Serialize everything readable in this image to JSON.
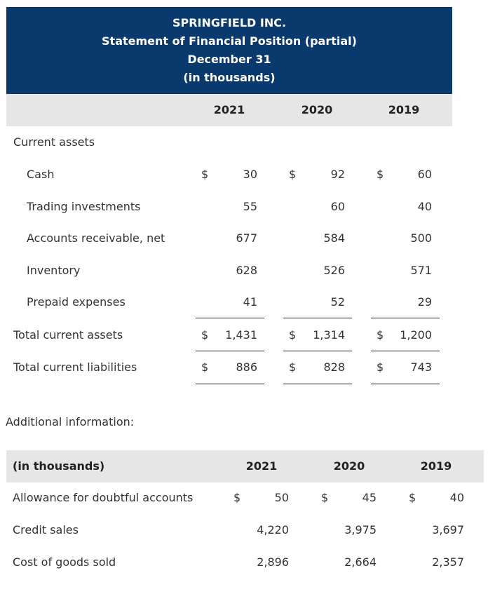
{
  "header": {
    "lines": [
      "SPRINGFIELD INC.",
      "Statement of Financial Position (partial)",
      "December 31",
      "(in thousands)"
    ]
  },
  "statement": {
    "columns": [
      "2021",
      "2020",
      "2019"
    ],
    "section": "Current assets",
    "current_assets": [
      {
        "label": "Cash",
        "cells": [
          {
            "currency": "$",
            "amount": "30"
          },
          {
            "currency": "$",
            "amount": "92"
          },
          {
            "currency": "$",
            "amount": "60"
          }
        ]
      },
      {
        "label": "Trading investments",
        "cells": [
          {
            "amount": "55"
          },
          {
            "amount": "60"
          },
          {
            "amount": "40"
          }
        ]
      },
      {
        "label": "Accounts receivable, net",
        "cells": [
          {
            "amount": "677"
          },
          {
            "amount": "584"
          },
          {
            "amount": "500"
          }
        ]
      },
      {
        "label": "Inventory",
        "cells": [
          {
            "amount": "628"
          },
          {
            "amount": "526"
          },
          {
            "amount": "571"
          }
        ]
      },
      {
        "label": "Prepaid expenses",
        "cells": [
          {
            "amount": "41"
          },
          {
            "amount": "52"
          },
          {
            "amount": "29"
          }
        ]
      }
    ],
    "totals": [
      {
        "label": "Total current assets",
        "cells": [
          {
            "currency": "$",
            "amount": "1,431"
          },
          {
            "currency": "$",
            "amount": "1,314"
          },
          {
            "currency": "$",
            "amount": "1,200"
          }
        ]
      },
      {
        "label": "Total current liabilities",
        "cells": [
          {
            "currency": "$",
            "amount": "886"
          },
          {
            "currency": "$",
            "amount": "828"
          },
          {
            "currency": "$",
            "amount": "743"
          }
        ]
      }
    ]
  },
  "additional": {
    "title": "Additional information:",
    "header": "(in thousands)",
    "columns": [
      "2021",
      "2020",
      "2019"
    ],
    "rows": [
      {
        "label": "Allowance for doubtful accounts",
        "cells": [
          {
            "currency": "$",
            "amount": "50"
          },
          {
            "currency": "$",
            "amount": "45"
          },
          {
            "currency": "$",
            "amount": "40"
          }
        ]
      },
      {
        "label": "Credit sales",
        "cells": [
          {
            "amount": "4,220"
          },
          {
            "amount": "3,975"
          },
          {
            "amount": "3,697"
          }
        ]
      },
      {
        "label": "Cost of goods sold",
        "cells": [
          {
            "amount": "2,896"
          },
          {
            "amount": "2,664"
          },
          {
            "amount": "2,357"
          }
        ]
      }
    ]
  }
}
